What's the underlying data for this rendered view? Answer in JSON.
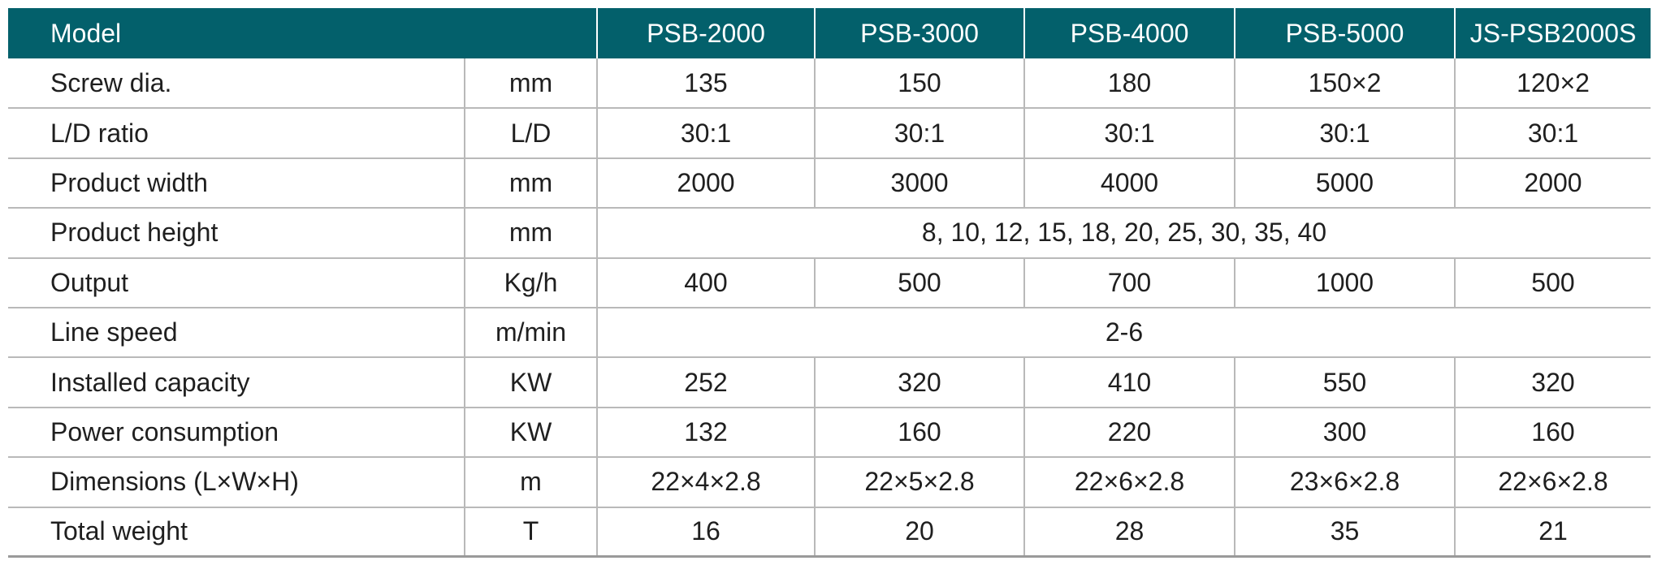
{
  "header": {
    "model_label": "Model",
    "models": [
      "PSB-2000",
      "PSB-3000",
      "PSB-4000",
      "PSB-5000",
      "JS-PSB2000S"
    ]
  },
  "rows": [
    {
      "param": "Screw dia.",
      "unit": "mm",
      "values": [
        "135",
        "150",
        "180",
        "150×2",
        "120×2"
      ]
    },
    {
      "param": "L/D ratio",
      "unit": "L/D",
      "values": [
        "30:1",
        "30:1",
        "30:1",
        "30:1",
        "30:1"
      ]
    },
    {
      "param": "Product width",
      "unit": "mm",
      "values": [
        "2000",
        "3000",
        "4000",
        "5000",
        "2000"
      ]
    },
    {
      "param": "Product height",
      "unit": "mm",
      "merged_value": "8, 10, 12, 15, 18, 20, 25, 30, 35, 40"
    },
    {
      "param": "Output",
      "unit": "Kg/h",
      "values": [
        "400",
        "500",
        "700",
        "1000",
        "500"
      ]
    },
    {
      "param": "Line speed",
      "unit": "m/min",
      "merged_value": "2-6"
    },
    {
      "param": "Installed capacity",
      "unit": "KW",
      "values": [
        "252",
        "320",
        "410",
        "550",
        "320"
      ]
    },
    {
      "param": "Power consumption",
      "unit": "KW",
      "values": [
        "132",
        "160",
        "220",
        "300",
        "160"
      ]
    },
    {
      "param": "Dimensions (L×W×H)",
      "unit": "m",
      "values": [
        "22×4×2.8",
        "22×5×2.8",
        "22×6×2.8",
        "23×6×2.8",
        "22×6×2.8"
      ]
    },
    {
      "param": "Total weight",
      "unit": "T",
      "values": [
        "16",
        "20",
        "28",
        "35",
        "21"
      ]
    }
  ],
  "colors": {
    "header_background": "#03606b",
    "header_text": "#ffffff",
    "grid_line": "#b9b9b9",
    "body_text": "#1f1f1f"
  }
}
